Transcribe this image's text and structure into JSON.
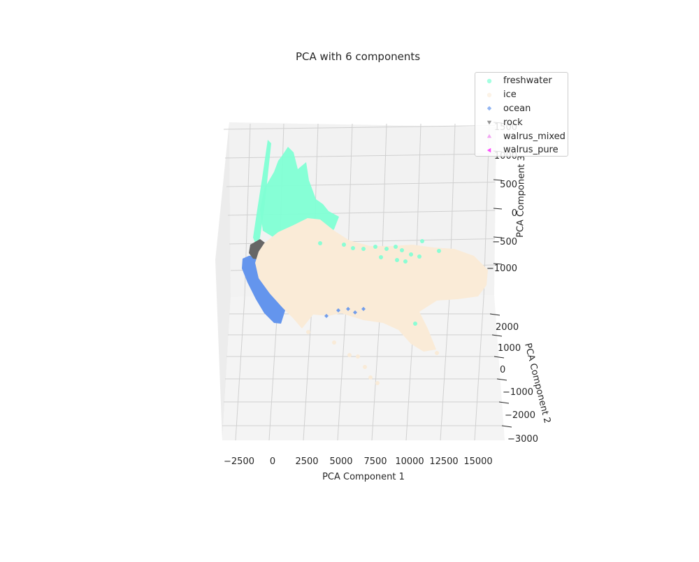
{
  "chart_data": {
    "type": "scatter",
    "projection": "3d",
    "title": "PCA with 6 components",
    "xlabel": "PCA Component 1",
    "ylabel": "PCA Component 2",
    "zlabel": "PCA Component 3",
    "x_ticks": [
      "−2500",
      "0",
      "2500",
      "5000",
      "7500",
      "10000",
      "12500",
      "15000"
    ],
    "y_ticks": [
      "−3000",
      "−2000",
      "−1000",
      "0",
      "1000",
      "2000"
    ],
    "z_ticks": [
      "−1000",
      "−500",
      "0",
      "500",
      "1000",
      "1500"
    ],
    "xlim": [
      -3800,
      16500
    ],
    "ylim": [
      -3300,
      2300
    ],
    "zlim": [
      -1400,
      1600
    ],
    "grid": true,
    "legend_position": "top-right",
    "series": [
      {
        "name": "freshwater",
        "color": "#7fffd4",
        "marker": "circle",
        "points": [
          [
            500,
            1900,
            1450
          ],
          [
            800,
            1800,
            1300
          ],
          [
            1100,
            1600,
            1150
          ],
          [
            700,
            1700,
            1250
          ],
          [
            1700,
            1900,
            1400
          ],
          [
            2000,
            1700,
            1150
          ],
          [
            2300,
            1500,
            950
          ],
          [
            1400,
            1300,
            900
          ],
          [
            900,
            1100,
            800
          ],
          [
            2600,
            1300,
            700
          ],
          [
            3100,
            1100,
            550
          ],
          [
            3600,
            900,
            400
          ],
          [
            1800,
            900,
            700
          ],
          [
            1200,
            700,
            650
          ],
          [
            2600,
            800,
            500
          ],
          [
            600,
            600,
            600
          ],
          [
            3300,
            600,
            300
          ],
          [
            7200,
            1600,
            -400
          ],
          [
            7900,
            1400,
            -450
          ],
          [
            8700,
            1200,
            -500
          ],
          [
            9600,
            1000,
            -550
          ],
          [
            10600,
            900,
            -600
          ],
          [
            8100,
            600,
            -600
          ],
          [
            10300,
            600,
            -700
          ],
          [
            2400,
            1500,
            300
          ],
          [
            1900,
            1200,
            450
          ],
          [
            2800,
            1100,
            350
          ],
          [
            7500,
            300,
            -900
          ]
        ]
      },
      {
        "name": "ice",
        "color": "#faebd7",
        "marker": "x",
        "points": [
          [
            0,
            300,
            -400
          ],
          [
            1500,
            400,
            -300
          ],
          [
            3000,
            300,
            -350
          ],
          [
            4500,
            200,
            -400
          ],
          [
            6000,
            200,
            -450
          ],
          [
            7500,
            100,
            -500
          ],
          [
            9000,
            100,
            -550
          ],
          [
            10500,
            100,
            -600
          ],
          [
            12000,
            0,
            -650
          ],
          [
            13500,
            0,
            -700
          ],
          [
            14800,
            0,
            -800
          ],
          [
            2000,
            -100,
            -500
          ],
          [
            4000,
            -200,
            -500
          ],
          [
            6500,
            -300,
            -600
          ],
          [
            8500,
            -300,
            -700
          ],
          [
            10500,
            -300,
            -800
          ],
          [
            12500,
            -400,
            -900
          ],
          [
            11500,
            -1000,
            -1100
          ],
          [
            13000,
            -1100,
            -1150
          ],
          [
            6000,
            -800,
            -900
          ],
          [
            5500,
            -1700,
            -1100
          ],
          [
            7200,
            -2100,
            -1200
          ],
          [
            1000,
            700,
            -100
          ],
          [
            2500,
            900,
            0
          ],
          [
            4200,
            700,
            -100
          ],
          [
            3000,
            -700,
            -800
          ],
          [
            2200,
            -1000,
            -850
          ],
          [
            9500,
            -600,
            -950
          ],
          [
            7800,
            500,
            -450
          ],
          [
            14000,
            -300,
            -850
          ]
        ]
      },
      {
        "name": "ocean",
        "color": "#6495ed",
        "marker": "diamond",
        "points": [
          [
            -2600,
            100,
            -800
          ],
          [
            -2500,
            -200,
            -850
          ],
          [
            -2300,
            -500,
            -900
          ],
          [
            -1900,
            -800,
            -950
          ],
          [
            -1500,
            -1100,
            -1000
          ],
          [
            -1100,
            -1300,
            -1050
          ],
          [
            -700,
            -1500,
            -1100
          ],
          [
            -1800,
            -400,
            -880
          ],
          [
            -1200,
            -900,
            -980
          ],
          [
            -2400,
            -300,
            -830
          ],
          [
            -1000,
            -1000,
            -1000
          ],
          [
            -500,
            -1200,
            -1050
          ],
          [
            3500,
            -700,
            -900
          ],
          [
            4200,
            -800,
            -950
          ]
        ]
      },
      {
        "name": "rock",
        "color": "#666666",
        "marker": "triangle_down",
        "points": [
          [
            -1900,
            500,
            -350
          ],
          [
            -1400,
            700,
            -250
          ],
          [
            -1000,
            600,
            -300
          ],
          [
            -1700,
            300,
            -500
          ],
          [
            -800,
            900,
            -200
          ],
          [
            -1200,
            400,
            -450
          ]
        ]
      },
      {
        "name": "walrus_mixed",
        "color": "#ee82ee",
        "marker": "triangle_up",
        "points": []
      },
      {
        "name": "walrus_pure",
        "color": "#ff00ff",
        "marker": "triangle_left",
        "points": []
      }
    ]
  }
}
